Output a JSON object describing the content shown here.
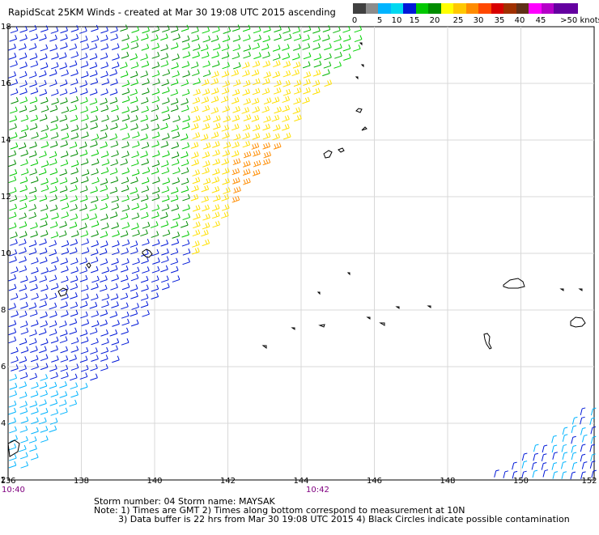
{
  "title": "RapidScat 25KM Winds - created at Mar 30 19:08 UTC 2015 ascending",
  "legend": {
    "labels": [
      "0",
      "5",
      "10",
      "15",
      "20",
      "25",
      "30",
      "35",
      "40",
      "45",
      ">50 knots"
    ],
    "colors": [
      "#404040",
      "#909090",
      "#00aaff",
      "#00d8ff",
      "#0000dd",
      "#00cc00",
      "#008800",
      "#ffff00",
      "#ffcc00",
      "#ff8800",
      "#ff4400",
      "#dd0000",
      "#aa3300",
      "#773300",
      "#ff00ff",
      "#aa00cc",
      "#6600aa"
    ]
  },
  "map": {
    "lon_ticks": [
      "136",
      "138",
      "140",
      "142",
      "144",
      "146",
      "148",
      "150",
      "152"
    ],
    "lat_ticks": [
      "2",
      "4",
      "6",
      "8",
      "10",
      "12",
      "14",
      "16",
      "18"
    ],
    "lon_range": [
      136,
      152
    ],
    "lat_range": [
      2,
      18
    ]
  },
  "times": {
    "left": "10:40",
    "mid": "10:42"
  },
  "notes": {
    "line1": "Storm number: 04     Storm name: MAYSAK",
    "line2": "Note: 1) Times are GMT  2) Times along bottom correspond to measurement at 10N",
    "line3": "3) Data buffer is 22 hrs from Mar 30 19:08 UTC 2015   4) Black Circles indicate possible contamination"
  }
}
